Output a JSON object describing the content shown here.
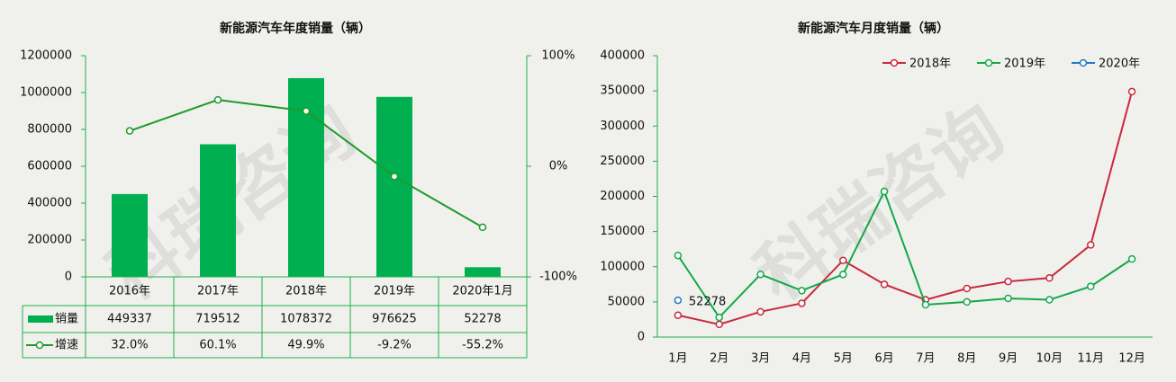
{
  "watermark": "科瑞咨询",
  "chart_data": [
    {
      "type": "combo",
      "title": "新能源汽车年度销量（辆）",
      "categories": [
        "2016年",
        "2017年",
        "2018年",
        "2019年",
        "2020年1月"
      ],
      "series": [
        {
          "name": "销量",
          "type": "bar",
          "color": "#00b050",
          "values": [
            449337,
            719512,
            1078372,
            976625,
            52278
          ]
        },
        {
          "name": "增速",
          "type": "line",
          "axis": "y2",
          "color": "#1e9a2c",
          "values": [
            32.0,
            60.1,
            49.9,
            -9.2,
            -55.2
          ],
          "value_labels": [
            "32.0%",
            "60.1%",
            "49.9%",
            "-9.2%",
            "-55.2%"
          ]
        }
      ],
      "ylim": [
        0,
        1200000
      ],
      "yticks": [
        0,
        200000,
        400000,
        600000,
        800000,
        1000000,
        1200000
      ],
      "y2lim": [
        -100,
        100
      ],
      "y2ticks": [
        {
          "value": -100,
          "label": "-100%"
        },
        {
          "value": 0,
          "label": "0%"
        },
        {
          "value": 100,
          "label": "100%"
        }
      ],
      "data_table": true
    },
    {
      "type": "line",
      "title": "新能源汽车月度销量（辆）",
      "categories": [
        "1月",
        "2月",
        "3月",
        "4月",
        "5月",
        "6月",
        "7月",
        "8月",
        "9月",
        "10月",
        "11月",
        "12月"
      ],
      "series": [
        {
          "name": "2018年",
          "color": "#c8283c",
          "values": [
            31000,
            18000,
            36000,
            48000,
            109000,
            75000,
            53000,
            69000,
            79000,
            84000,
            131000,
            349000
          ]
        },
        {
          "name": "2019年",
          "color": "#12a84a",
          "values": [
            116000,
            28000,
            89000,
            66000,
            89000,
            207000,
            46000,
            50000,
            55000,
            53000,
            72000,
            111000
          ]
        },
        {
          "name": "2020年",
          "color": "#1f78c8",
          "values": [
            52278,
            null,
            null,
            null,
            null,
            null,
            null,
            null,
            null,
            null,
            null,
            null
          ],
          "show_value_labels": true
        }
      ],
      "ylim": [
        0,
        400000
      ],
      "yticks": [
        0,
        50000,
        100000,
        150000,
        200000,
        250000,
        300000,
        350000,
        400000
      ],
      "legend": "top"
    }
  ]
}
